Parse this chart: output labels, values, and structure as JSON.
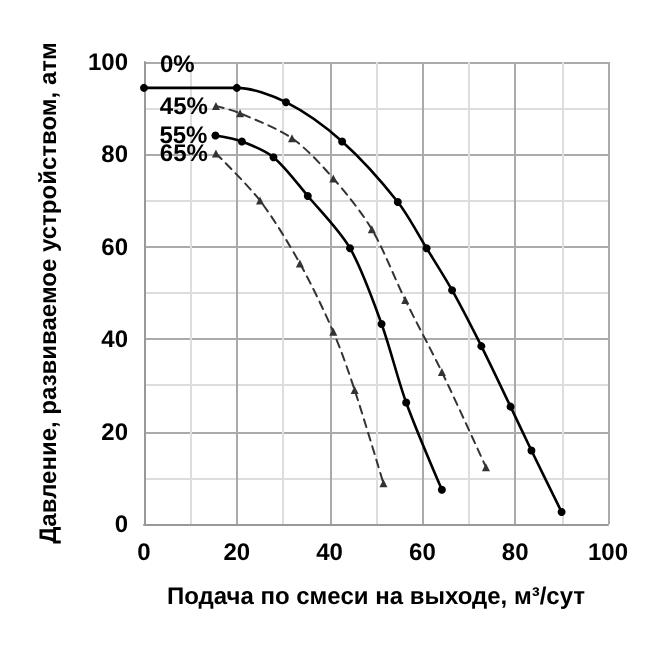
{
  "chart_data": {
    "type": "line",
    "xlabel": "Подача по смеси на выходе, м³/сут",
    "ylabel": "Давление, развиваемое устройством, атм",
    "xlim": [
      0,
      100
    ],
    "xticks": [
      0,
      20,
      40,
      60,
      80,
      100
    ],
    "ylim": [
      0,
      100
    ],
    "yticks": [
      0,
      20,
      40,
      60,
      80,
      100
    ],
    "grid": true,
    "legend": false,
    "series": [
      {
        "name": "0%",
        "color": "#000000",
        "marker": "circle",
        "line_style": "solid",
        "x": [
          0,
          20,
          30.6,
          42.7,
          54.7,
          60.9,
          66.4,
          72.7,
          79,
          83.5,
          90
        ],
        "values": [
          94.4,
          94.4,
          91.3,
          82.8,
          69.7,
          59.7,
          50.6,
          38.5,
          25.4,
          15.9,
          2.6
        ]
      },
      {
        "name": "45%",
        "color": "#333333",
        "marker": "triangle",
        "line_style": "dashed",
        "x": [
          15.5,
          20.7,
          31.9,
          40.8,
          49.1,
          56.3,
          64.2,
          73.7
        ],
        "values": [
          90.5,
          88.9,
          83.5,
          74.8,
          63.8,
          48.5,
          32.9,
          12.3
        ]
      },
      {
        "name": "55%",
        "color": "#000000",
        "marker": "circle",
        "line_style": "solid",
        "x": [
          15.4,
          21.1,
          27.9,
          35.3,
          44.4,
          51.2,
          56.5,
          64.2
        ],
        "values": [
          84.1,
          82.8,
          79.4,
          71,
          59.7,
          43.3,
          26.3,
          7.4
        ]
      },
      {
        "name": "65%",
        "color": "#333333",
        "marker": "triangle",
        "line_style": "dashed",
        "x": [
          15.5,
          25,
          33.6,
          40.8,
          45.4,
          51.6
        ],
        "values": [
          80.2,
          70,
          56.4,
          41.6,
          29,
          8.8
        ]
      }
    ]
  }
}
